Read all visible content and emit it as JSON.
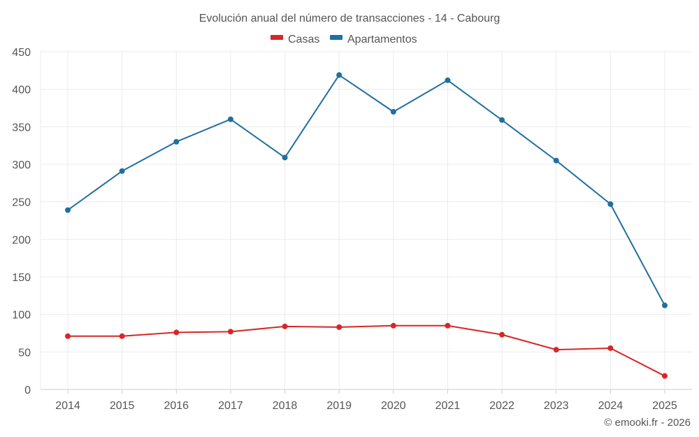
{
  "chart_data": {
    "type": "line",
    "title": "Evolución anual del número de transacciones - 14 - Cabourg",
    "categories": [
      "2014",
      "2015",
      "2016",
      "2017",
      "2018",
      "2019",
      "2020",
      "2021",
      "2022",
      "2023",
      "2024",
      "2025"
    ],
    "series": [
      {
        "name": "Casas",
        "color": "#d62728",
        "values": [
          71,
          71,
          76,
          77,
          84,
          83,
          85,
          85,
          73,
          53,
          55,
          18
        ]
      },
      {
        "name": "Apartamentos",
        "color": "#1f6f9f",
        "values": [
          239,
          291,
          330,
          360,
          309,
          419,
          370,
          412,
          359,
          305,
          247,
          112
        ]
      }
    ],
    "ylim": [
      0,
      450
    ],
    "yticks": [
      "0",
      "50",
      "100",
      "150",
      "200",
      "250",
      "300",
      "350",
      "400",
      "450"
    ],
    "grid": true,
    "legend_position": "top-center",
    "credit": "© emooki.fr - 2026"
  }
}
